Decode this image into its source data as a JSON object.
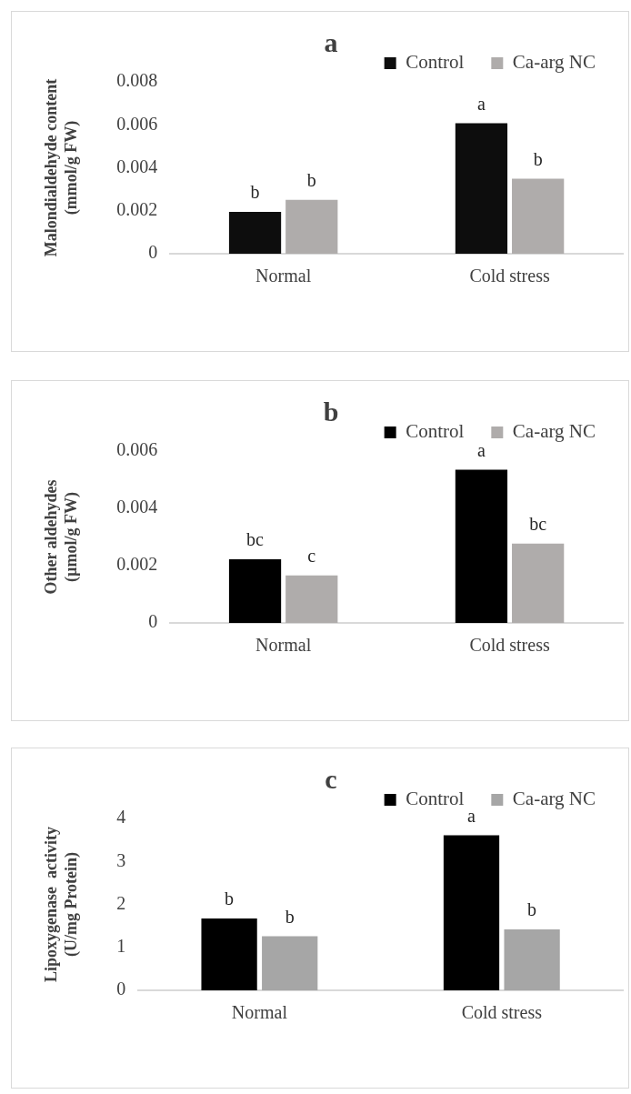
{
  "chart_data": [
    {
      "type": "bar",
      "title": "a",
      "ylabel": "Malondialdehyde content\n(mmol/g FW)",
      "categories": [
        "Normal",
        "Cold stress"
      ],
      "series": [
        {
          "name": "Control",
          "color": "#0d0d0d",
          "values": [
            0.00195,
            0.00607
          ],
          "value_labels": [
            "b",
            "a"
          ]
        },
        {
          "name": "Ca-arg NC",
          "color": "#afacab",
          "values": [
            0.00251,
            0.00349
          ],
          "value_labels": [
            "b",
            "b"
          ]
        }
      ],
      "ylim": [
        0,
        0.008
      ],
      "yticks": [
        0,
        0.002,
        0.004,
        0.006,
        0.008
      ],
      "grid": false,
      "legend": "top right"
    },
    {
      "type": "bar",
      "title": "b",
      "ylabel": "Other aldehydes\n(µmol/g FW)",
      "categories": [
        "Normal",
        "Cold stress"
      ],
      "series": [
        {
          "name": "Control",
          "color": "#000000",
          "values": [
            0.00222,
            0.00535
          ],
          "value_labels": [
            "bc",
            "a"
          ]
        },
        {
          "name": "Ca-arg NC",
          "color": "#afacab",
          "values": [
            0.00166,
            0.00277
          ],
          "value_labels": [
            "c",
            "bc"
          ]
        }
      ],
      "ylim": [
        0,
        0.006
      ],
      "yticks": [
        0,
        0.002,
        0.004,
        0.006
      ],
      "grid": false,
      "legend": "top right"
    },
    {
      "type": "bar",
      "title": "c",
      "ylabel": "Lipoxygenase  activity\n(U/mg Protein)",
      "categories": [
        "Normal",
        "Cold stress"
      ],
      "series": [
        {
          "name": "Control",
          "color": "#000000",
          "values": [
            1.67,
            3.61
          ],
          "value_labels": [
            "b",
            "a"
          ]
        },
        {
          "name": "Ca-arg NC",
          "color": "#a6a6a6",
          "values": [
            1.26,
            1.42
          ],
          "value_labels": [
            "b",
            "b"
          ]
        }
      ],
      "ylim": [
        0,
        4
      ],
      "yticks": [
        0,
        1,
        2,
        3,
        4
      ],
      "grid": false,
      "legend": "top right"
    }
  ]
}
